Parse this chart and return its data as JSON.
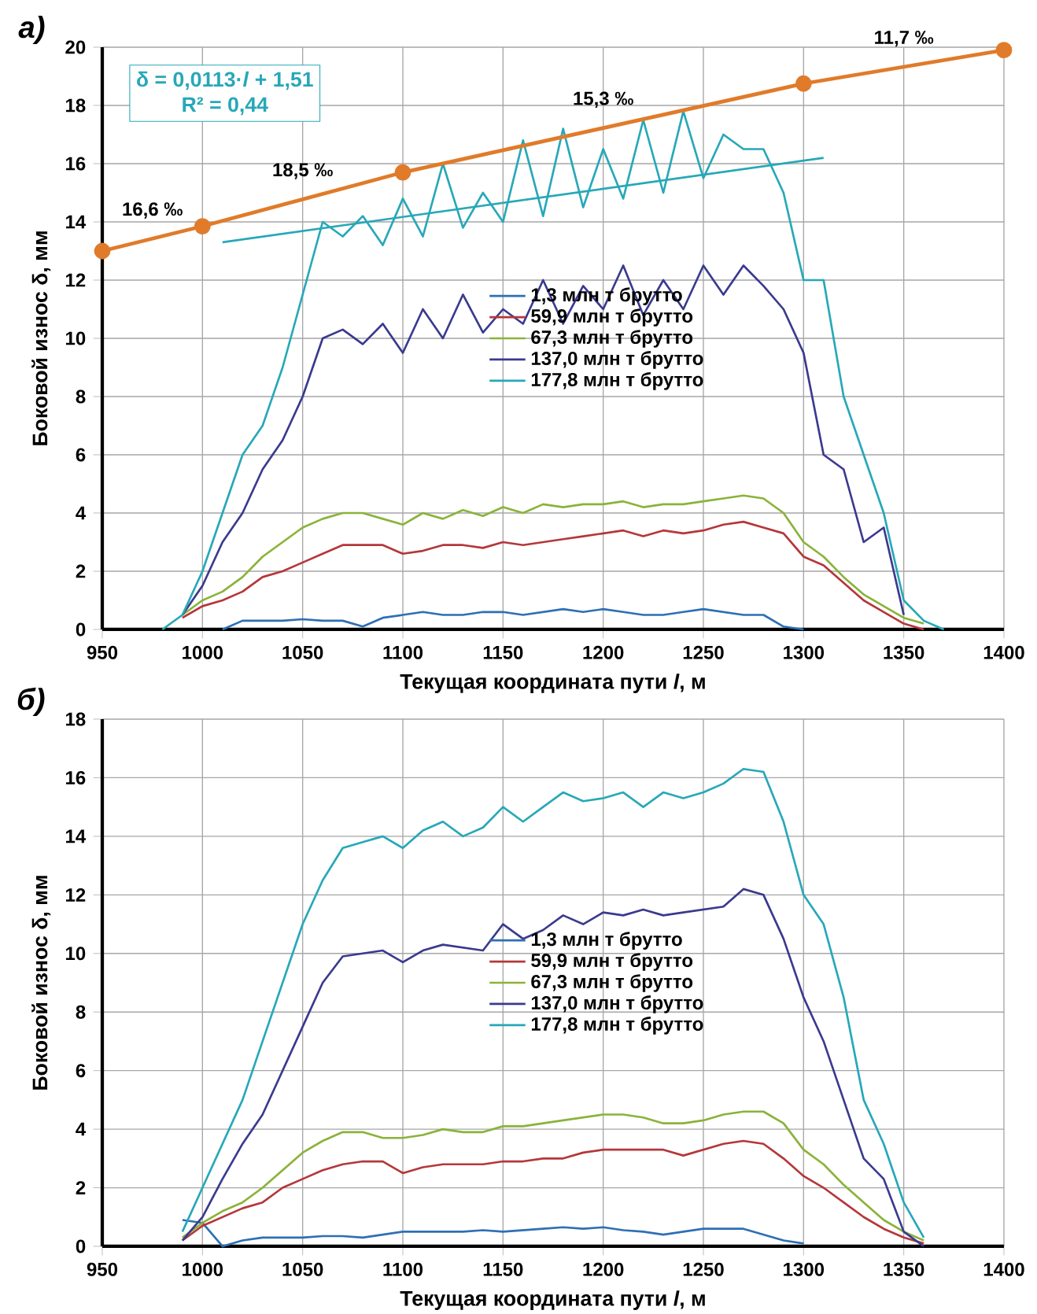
{
  "chart_data": [
    {
      "type": "line",
      "title": "а)",
      "xlabel": "Текущая координата пути *l*, м",
      "ylabel": "Боковой износ δ, мм",
      "xlim": [
        950,
        1400
      ],
      "ylim": [
        0,
        20
      ],
      "xticks": [
        950,
        1000,
        1050,
        1100,
        1150,
        1200,
        1250,
        1300,
        1350,
        1400
      ],
      "yticks": [
        0,
        2,
        4,
        6,
        8,
        10,
        12,
        14,
        16,
        18,
        20
      ],
      "grid": true,
      "legend": "center",
      "x": [
        980,
        990,
        1000,
        1010,
        1020,
        1030,
        1040,
        1050,
        1060,
        1070,
        1080,
        1090,
        1100,
        1110,
        1120,
        1130,
        1140,
        1150,
        1160,
        1170,
        1180,
        1190,
        1200,
        1210,
        1220,
        1230,
        1240,
        1250,
        1260,
        1270,
        1280,
        1290,
        1300,
        1310,
        1320,
        1330,
        1340,
        1350,
        1360,
        1370
      ],
      "series": [
        {
          "name": "1,3 млн т брутто",
          "color": "#2e6fb5",
          "values": [
            null,
            null,
            null,
            0,
            0.3,
            0.3,
            0.3,
            0.35,
            0.3,
            0.3,
            0.1,
            0.4,
            0.5,
            0.6,
            0.5,
            0.5,
            0.6,
            0.6,
            0.5,
            0.6,
            0.7,
            0.6,
            0.7,
            0.6,
            0.5,
            0.5,
            0.6,
            0.7,
            0.6,
            0.5,
            0.5,
            0.1,
            0,
            null,
            null,
            null,
            null,
            null,
            null,
            null
          ]
        },
        {
          "name": "59,9 млн т брутто",
          "color": "#b5373a",
          "values": [
            null,
            0.4,
            0.8,
            1,
            1.3,
            1.8,
            2,
            2.3,
            2.6,
            2.9,
            2.9,
            2.9,
            2.6,
            2.7,
            2.9,
            2.9,
            2.8,
            3,
            2.9,
            3,
            3.1,
            3.2,
            3.3,
            3.4,
            3.2,
            3.4,
            3.3,
            3.4,
            3.6,
            3.7,
            3.5,
            3.3,
            2.5,
            2.2,
            1.6,
            1,
            0.6,
            0.2,
            0,
            null
          ]
        },
        {
          "name": "67,3 млн т брутто",
          "color": "#8ab33a",
          "values": [
            null,
            0.5,
            1,
            1.3,
            1.8,
            2.5,
            3,
            3.5,
            3.8,
            4,
            4,
            3.8,
            3.6,
            4,
            3.8,
            4.1,
            3.9,
            4.2,
            4,
            4.3,
            4.2,
            4.3,
            4.3,
            4.4,
            4.2,
            4.3,
            4.3,
            4.4,
            4.5,
            4.6,
            4.5,
            4,
            3,
            2.5,
            1.8,
            1.2,
            0.8,
            0.4,
            0.2,
            null
          ]
        },
        {
          "name": "137,0 млн т брутто",
          "color": "#3a3a8f",
          "values": [
            null,
            0.5,
            1.5,
            3,
            4,
            5.5,
            6.5,
            8,
            10,
            10.3,
            9.8,
            10.5,
            9.5,
            11,
            10,
            11.5,
            10.2,
            11,
            10.5,
            12,
            10.5,
            11.8,
            11,
            12.5,
            10.8,
            12,
            11,
            12.5,
            11.5,
            12.5,
            11.8,
            11,
            9.5,
            6,
            5.5,
            3,
            3.5,
            0.5,
            null,
            null
          ]
        },
        {
          "name": "177,8 млн т брутто",
          "color": "#27a8b8",
          "values": [
            0,
            0.5,
            2,
            4,
            6,
            7,
            9,
            11.5,
            14,
            13.5,
            14.2,
            13.2,
            14.8,
            13.5,
            16,
            13.8,
            15,
            14,
            16.8,
            14.2,
            17.2,
            14.5,
            16.5,
            14.8,
            17.5,
            15,
            17.8,
            15.5,
            17,
            16.5,
            16.5,
            15,
            12,
            12,
            8,
            6,
            4,
            1,
            0.3,
            0
          ]
        },
        {
          "color": "#27a8b8",
          "x": [
            1010,
            1310
          ],
          "values": [
            13.3,
            16.2
          ]
        },
        {
          "color": "#e07b2a",
          "x": [
            950,
            1000,
            1100,
            1300,
            1400
          ],
          "values": [
            13,
            13.85,
            15.7,
            18.75,
            19.9
          ],
          "marker": "circle"
        }
      ],
      "annotations": [
        "δ = 0,0113·*l* + 1,51",
        "R² = 0,44",
        {
          "text": "16,6 ‰",
          "x": 975,
          "y": 13.43
        },
        {
          "text": "18,5 ‰",
          "x": 1050,
          "y": 14.78
        },
        {
          "text": "15,3 ‰",
          "x": 1200,
          "y": 17.23
        },
        {
          "text": "11,7 ‰",
          "x": 1350,
          "y": 19.33
        }
      ]
    },
    {
      "type": "line",
      "title": "б)",
      "xlabel": "Текущая координата пути *l*, м",
      "ylabel": "Боковой износ δ, мм",
      "xlim": [
        950,
        1400
      ],
      "ylim": [
        0,
        18
      ],
      "xticks": [
        950,
        1000,
        1050,
        1100,
        1150,
        1200,
        1250,
        1300,
        1350,
        1400
      ],
      "yticks": [
        0,
        2,
        4,
        6,
        8,
        10,
        12,
        14,
        16,
        18
      ],
      "grid": true,
      "legend": "center",
      "x": [
        990,
        1000,
        1010,
        1020,
        1030,
        1040,
        1050,
        1060,
        1070,
        1080,
        1090,
        1100,
        1110,
        1120,
        1130,
        1140,
        1150,
        1160,
        1170,
        1180,
        1190,
        1200,
        1210,
        1220,
        1230,
        1240,
        1250,
        1260,
        1270,
        1280,
        1290,
        1300,
        1310,
        1320,
        1330,
        1340,
        1350,
        1360
      ],
      "series": [
        {
          "name": "1,3 млн т брутто",
          "color": "#2e6fb5",
          "values": [
            0.9,
            0.8,
            0,
            0.2,
            0.3,
            0.3,
            0.3,
            0.35,
            0.35,
            0.3,
            0.4,
            0.5,
            0.5,
            0.5,
            0.5,
            0.55,
            0.5,
            0.55,
            0.6,
            0.65,
            0.6,
            0.65,
            0.55,
            0.5,
            0.4,
            0.5,
            0.6,
            0.6,
            0.6,
            0.4,
            0.2,
            0.1,
            null,
            null,
            null,
            null,
            null,
            null
          ]
        },
        {
          "name": "59,9 млн т брутто",
          "color": "#b5373a",
          "values": [
            0.2,
            0.7,
            1,
            1.3,
            1.5,
            2,
            2.3,
            2.6,
            2.8,
            2.9,
            2.9,
            2.5,
            2.7,
            2.8,
            2.8,
            2.8,
            2.9,
            2.9,
            3,
            3,
            3.2,
            3.3,
            3.3,
            3.3,
            3.3,
            3.1,
            3.3,
            3.5,
            3.6,
            3.5,
            3,
            2.4,
            2,
            1.5,
            1,
            0.6,
            0.3,
            0.1
          ]
        },
        {
          "name": "67,3 млн т брутто",
          "color": "#8ab33a",
          "values": [
            0.3,
            0.8,
            1.2,
            1.5,
            2,
            2.6,
            3.2,
            3.6,
            3.9,
            3.9,
            3.7,
            3.7,
            3.8,
            4,
            3.9,
            3.9,
            4.1,
            4.1,
            4.2,
            4.3,
            4.4,
            4.5,
            4.5,
            4.4,
            4.2,
            4.2,
            4.3,
            4.5,
            4.6,
            4.6,
            4.2,
            3.3,
            2.8,
            2.1,
            1.5,
            0.9,
            0.5,
            0.2
          ]
        },
        {
          "name": "137,0 млн т брутто",
          "color": "#3a3a8f",
          "values": [
            0.2,
            1,
            2.3,
            3.5,
            4.5,
            6,
            7.5,
            9,
            9.9,
            10,
            10.1,
            9.7,
            10.1,
            10.3,
            10.2,
            10.1,
            11,
            10.5,
            10.8,
            11.3,
            11,
            11.4,
            11.3,
            11.5,
            11.3,
            11.4,
            11.5,
            11.6,
            12.2,
            12,
            10.5,
            8.5,
            7,
            5,
            3,
            2.3,
            0.5,
            0
          ]
        },
        {
          "name": "177,8 млн т брутто",
          "color": "#27a8b8",
          "values": [
            0.5,
            2,
            3.5,
            5,
            7,
            9,
            11,
            12.5,
            13.6,
            13.8,
            14,
            13.6,
            14.2,
            14.5,
            14,
            14.3,
            15,
            14.5,
            15,
            15.5,
            15.2,
            15.3,
            15.5,
            15,
            15.5,
            15.3,
            15.5,
            15.8,
            16.3,
            16.2,
            14.5,
            12,
            11,
            8.5,
            5,
            3.5,
            1.5,
            0.3
          ]
        }
      ]
    }
  ]
}
